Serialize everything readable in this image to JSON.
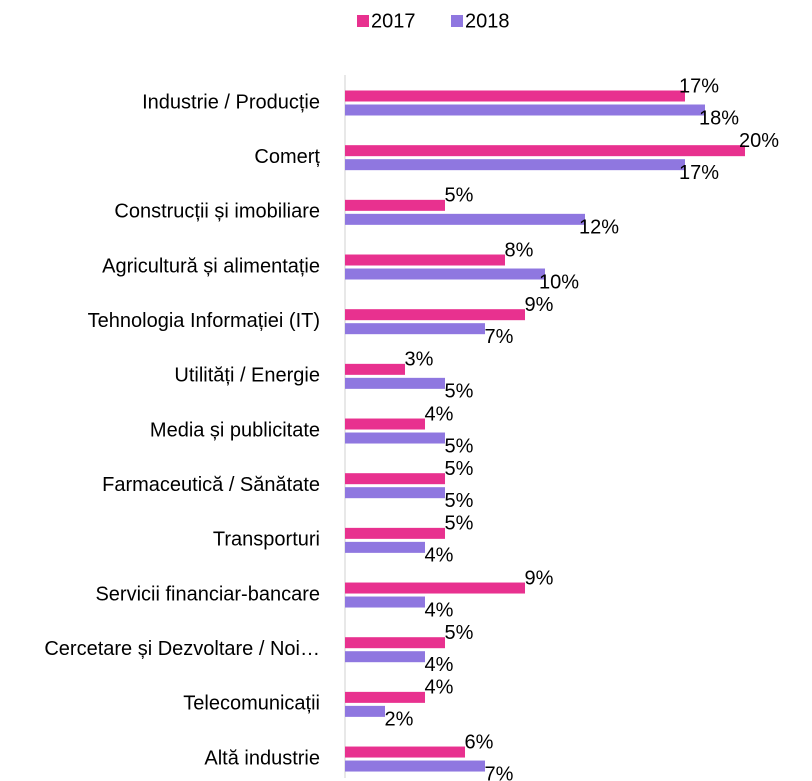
{
  "chart_data": {
    "type": "bar",
    "orientation": "horizontal",
    "categories": [
      "Industrie / Producție",
      "Comerț",
      "Construcții și imobiliare",
      "Agricultură și alimentație",
      "Tehnologia Informației (IT)",
      "Utilități / Energie",
      "Media și publicitate",
      "Farmaceutică / Sănătate",
      "Transporturi",
      "Servicii financiar-bancare",
      "Cercetare și Dezvoltare / Noi…",
      "Telecomunicații",
      "Altă industrie"
    ],
    "series": [
      {
        "name": "2017",
        "color": "#e8318f",
        "values": [
          17,
          20,
          5,
          8,
          9,
          3,
          4,
          5,
          5,
          9,
          5,
          4,
          6
        ],
        "value_labels": [
          "17%",
          "20%",
          "5%",
          "8%",
          "9%",
          "3%",
          "4%",
          "5%",
          "5%",
          "9%",
          "5%",
          "4%",
          "6%"
        ]
      },
      {
        "name": "2018",
        "color": "#8f77e0",
        "values": [
          18,
          17,
          12,
          10,
          7,
          5,
          5,
          5,
          4,
          4,
          4,
          2,
          7
        ],
        "value_labels": [
          "18%",
          "17%",
          "12%",
          "10%",
          "7%",
          "5%",
          "5%",
          "5%",
          "4%",
          "4%",
          "4%",
          "2%",
          "7%"
        ]
      }
    ],
    "legend": "top"
  }
}
